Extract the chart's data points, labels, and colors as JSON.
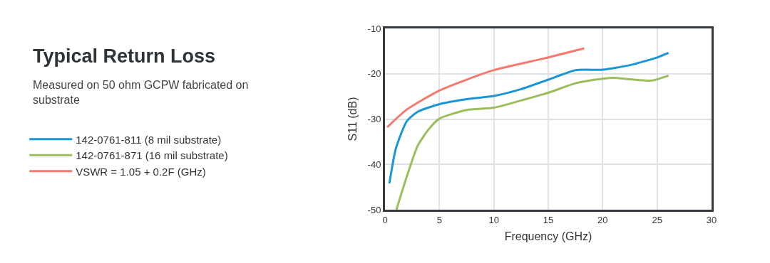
{
  "chart_data": {
    "type": "line",
    "title": "Typical Return Loss",
    "subtitle": "Measured on 50 ohm GCPW fabricated on substrate",
    "xlabel": "Frequency (GHz)",
    "ylabel": "S11 (dB)",
    "series": [
      {
        "name": "142-0761-811 (8 mil substrate)",
        "color": "#1a96d4",
        "x": [
          0.4,
          1,
          2,
          3,
          5,
          7.5,
          10,
          12.5,
          15,
          17.5,
          20,
          22.5,
          25,
          26.05
        ],
        "values": [
          -44.2,
          -36.5,
          -30.5,
          -28.4,
          -26.7,
          -25.6,
          -24.9,
          -23.4,
          -21.3,
          -19.2,
          -19.1,
          -18.1,
          -16.4,
          -15.4
        ]
      },
      {
        "name": "142-0761-871 (16 mil substrate)",
        "color": "#9bbd5a",
        "x": [
          1.05,
          2,
          3,
          4,
          5,
          7.5,
          10,
          12.5,
          15,
          17.5,
          20,
          21,
          22.5,
          24.5,
          26.05
        ],
        "values": [
          -50,
          -42.7,
          -35.9,
          -32.3,
          -29.9,
          -28,
          -27.5,
          -25.9,
          -24.2,
          -22.1,
          -21.1,
          -20.9,
          -21.2,
          -21.5,
          -20.4
        ]
      },
      {
        "name": "VSWR = 1.05 + 0.2F (GHz)",
        "color": "#f27a6e",
        "x": [
          0.2,
          2,
          5,
          7.5,
          10,
          15,
          18.3
        ],
        "values": [
          -31.8,
          -27.9,
          -23.7,
          -21.3,
          -19.2,
          -16.4,
          -14.4
        ]
      }
    ],
    "xlim": [
      0,
      30
    ],
    "xticks": [
      0,
      5,
      10,
      15,
      20,
      25,
      30
    ],
    "ylim": [
      -50,
      -10
    ],
    "yticks": [
      -50,
      -40,
      -30,
      -20,
      -10
    ],
    "grid": true,
    "legend": "left",
    "line_style": "solid",
    "marker": "none"
  }
}
